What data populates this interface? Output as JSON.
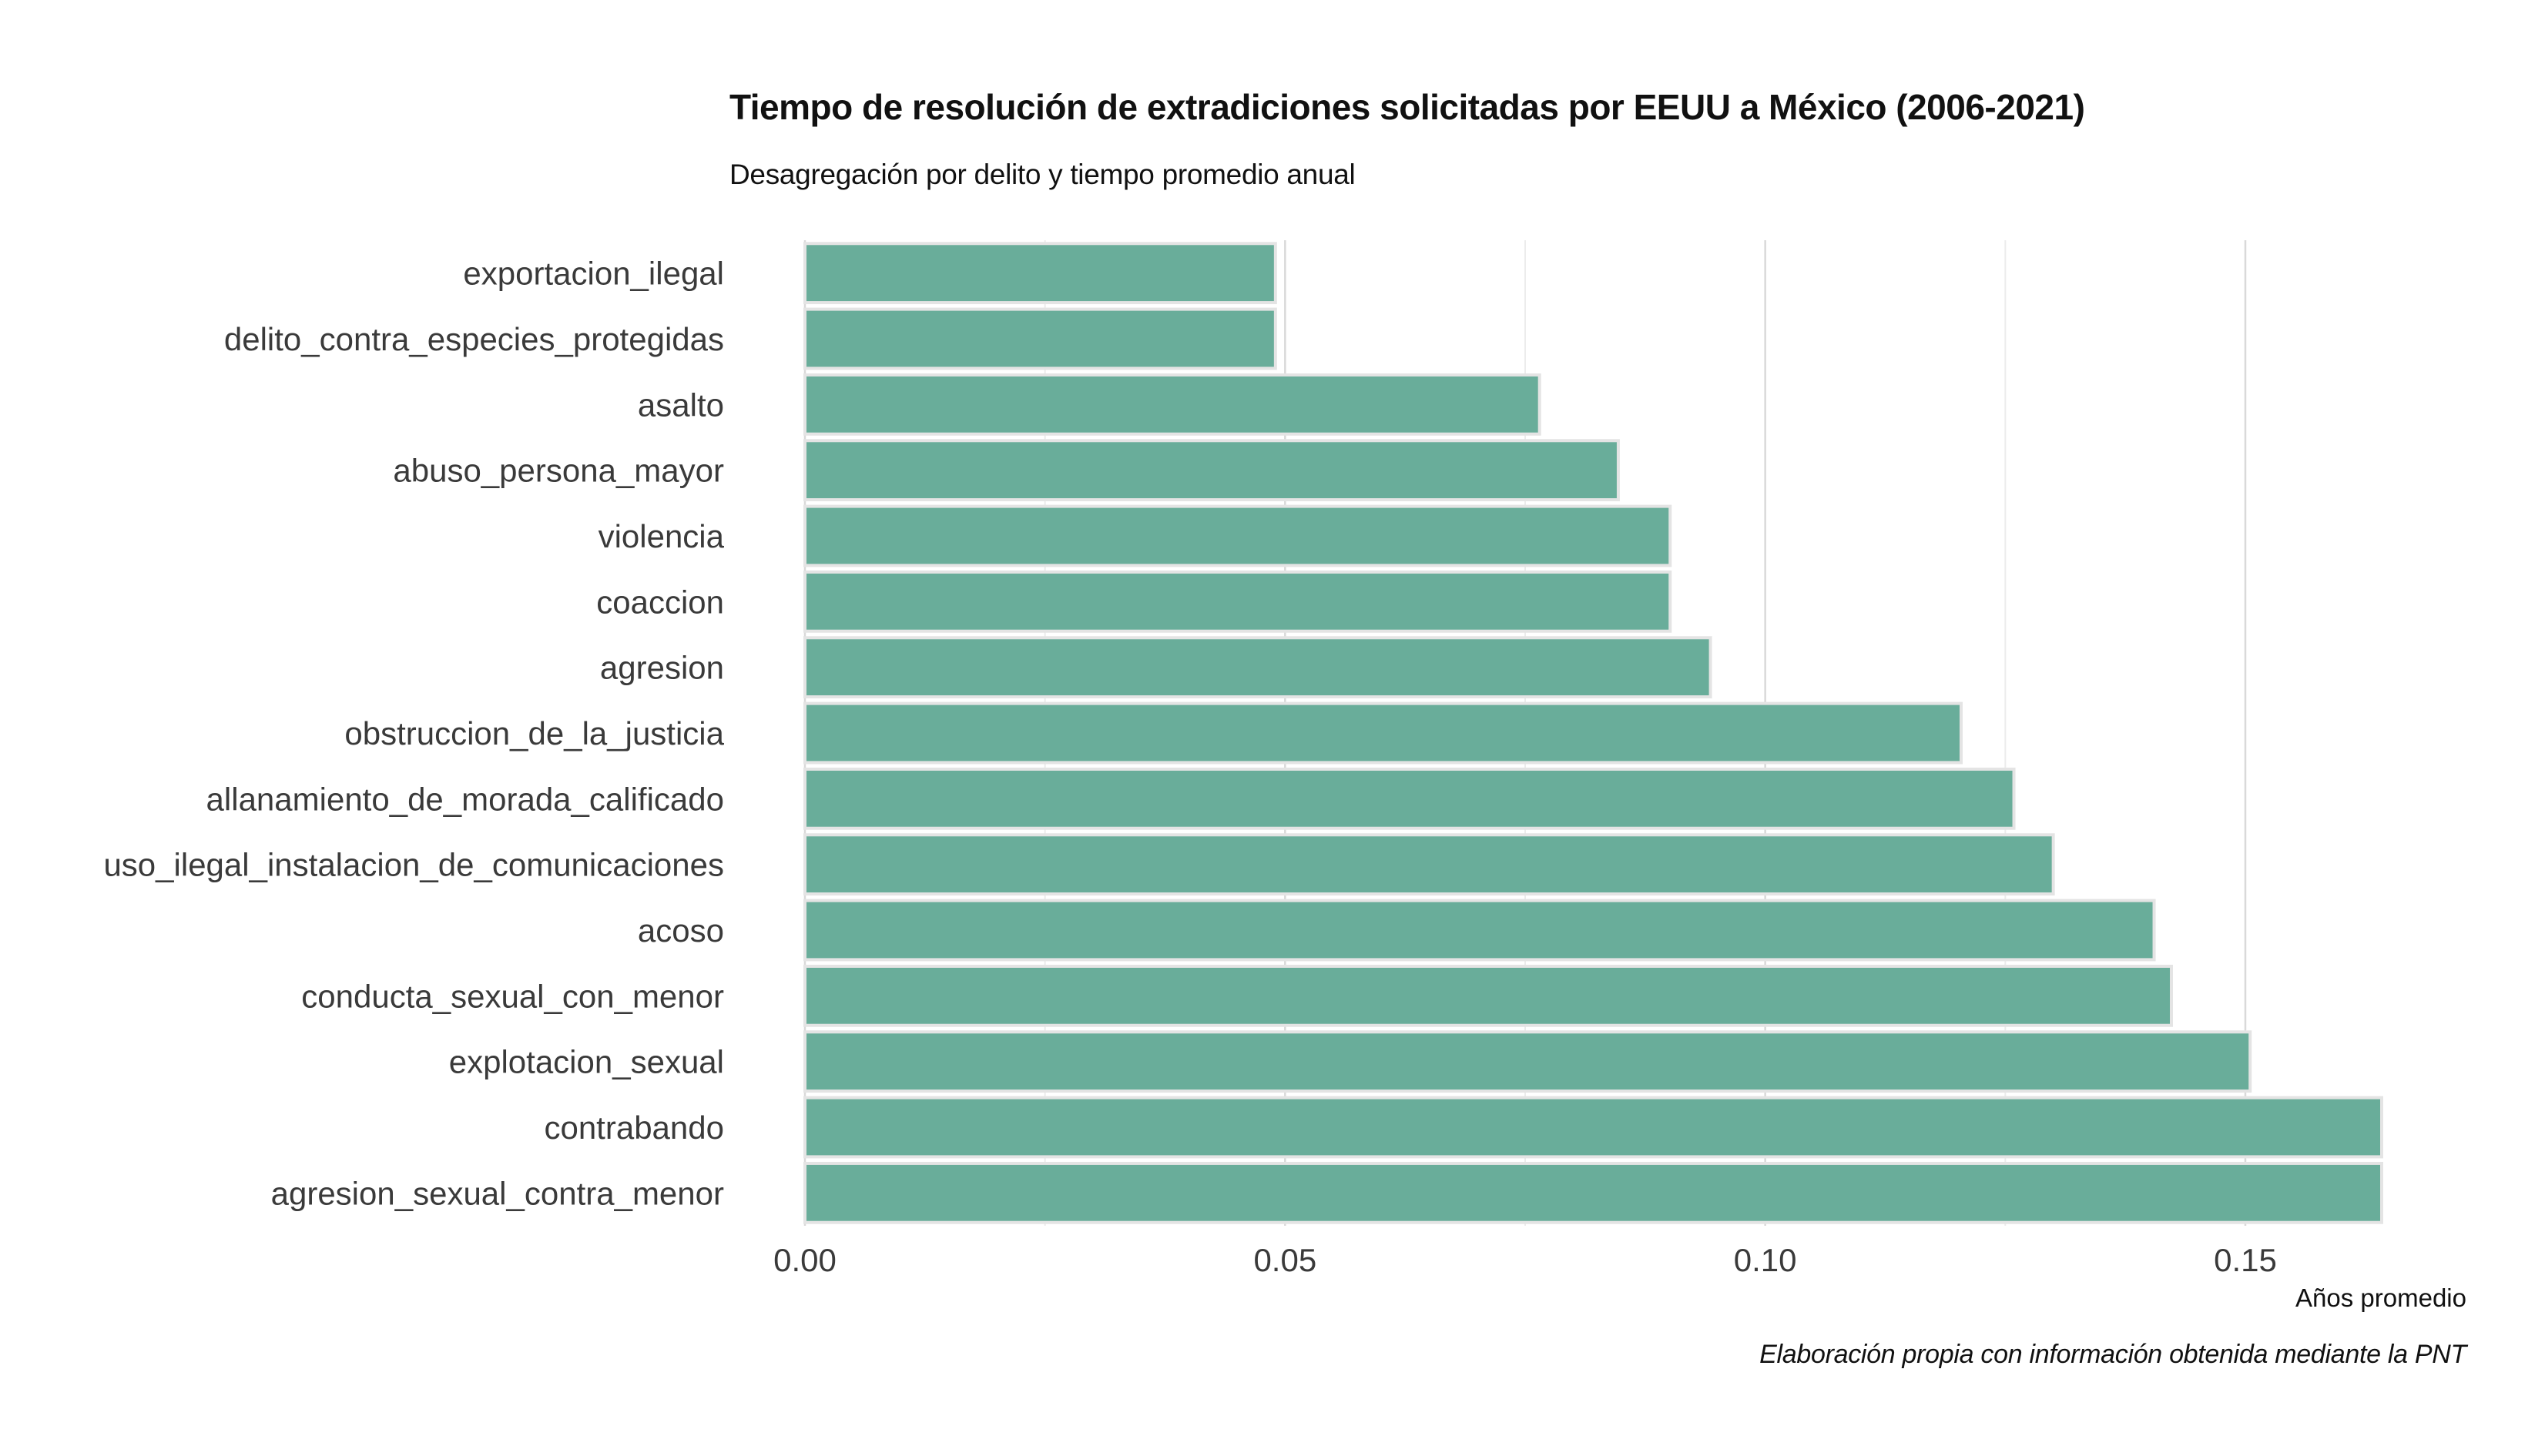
{
  "chart_data": {
    "type": "bar",
    "orientation": "horizontal",
    "title": "Tiempo de resolución de extradiciones solicitadas por EEUU a México (2006-2021)",
    "subtitle": "Desagregación por delito y tiempo promedio anual",
    "xlabel": "Años promedio",
    "ylabel": "",
    "caption": "Elaboración propia con información obtenida mediante la PNT",
    "categories": [
      "exportacion_ilegal",
      "delito_contra_especies_protegidas",
      "asalto",
      "abuso_persona_mayor",
      "violencia",
      "coaccion",
      "agresion",
      "obstruccion_de_la_justicia",
      "allanamiento_de_morada_calificado",
      "uso_ilegal_instalacion_de_comunicaciones",
      "acoso",
      "conducta_sexual_con_menor",
      "explotacion_sexual",
      "contrabando",
      "agresion_sexual_contra_menor"
    ],
    "values": [
      0.049,
      0.049,
      0.0765,
      0.0847,
      0.0901,
      0.0901,
      0.0943,
      0.1204,
      0.1259,
      0.13,
      0.1405,
      0.1423,
      0.1505,
      0.1642,
      0.1642
    ],
    "xlim": [
      0,
      0.1642
    ],
    "xticks": [
      "0.00",
      "0.05",
      "0.10",
      "0.15"
    ],
    "xtick_values": [
      0,
      0.05,
      0.1,
      0.15
    ],
    "grid": true,
    "legend": "none",
    "colors": {
      "bar_fill": "#69ad9a",
      "bar_stroke": "#e4e4e4",
      "grid_major": "#d9d9d9",
      "grid_minor": "#ececec"
    }
  }
}
